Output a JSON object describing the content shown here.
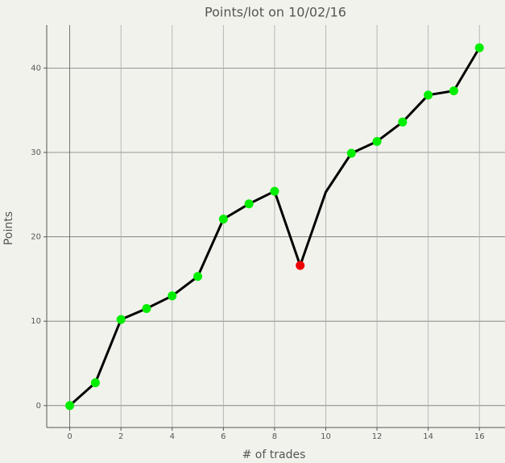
{
  "chart_data": {
    "type": "line",
    "title": "Points/lot on 10/02/16",
    "x_label": "# of trades",
    "y_label": "Points",
    "x": [
      0,
      1,
      2,
      3,
      4,
      5,
      6,
      7,
      8,
      9,
      10,
      11,
      12,
      13,
      14,
      15,
      16
    ],
    "series": [
      {
        "color": "#000000",
        "values": [
          0,
          2.7,
          10.2,
          11.5,
          13.0,
          15.3,
          22.1,
          23.9,
          25.4,
          16.6,
          25.3,
          29.9,
          31.3,
          33.6,
          36.8,
          37.3,
          42.4
        ],
        "marker_colors": [
          "#00ee00",
          "#00ee00",
          "#00ee00",
          "#00ee00",
          "#00ee00",
          "#00ee00",
          "#00ee00",
          "#00ee00",
          "#00ee00",
          "#ee0000",
          null,
          "#00ee00",
          "#00ee00",
          "#00ee00",
          "#00ee00",
          "#00ee00",
          "#00ee00"
        ]
      }
    ],
    "xlim": [
      -0.9,
      17.0
    ],
    "ylim": [
      -2.6,
      45.1
    ],
    "xticks": [
      0,
      2,
      4,
      6,
      8,
      10,
      12,
      14,
      16
    ],
    "yticks": [
      0,
      10,
      20,
      30,
      40
    ],
    "grid": true
  }
}
